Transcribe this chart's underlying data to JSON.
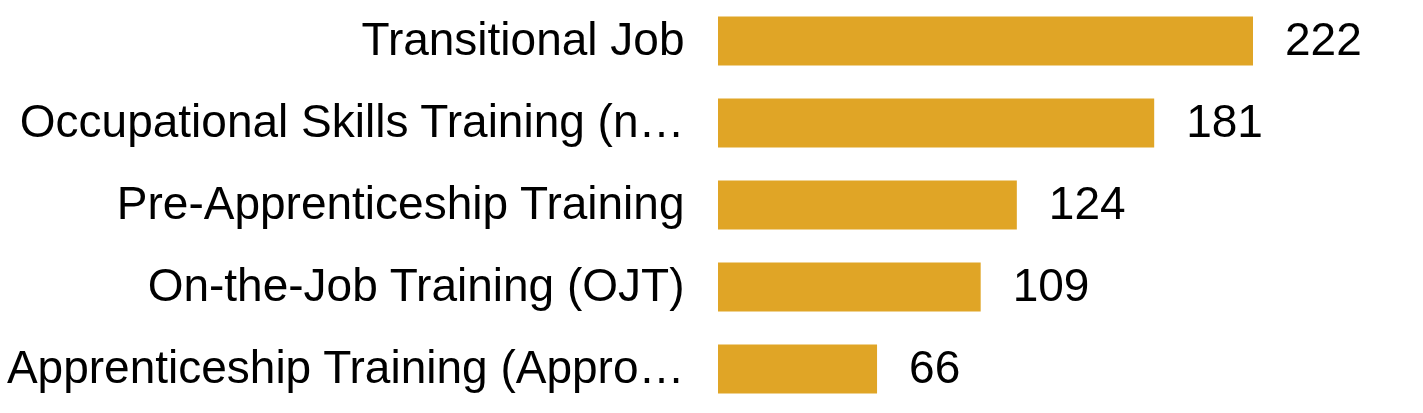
{
  "chart_data": {
    "type": "bar",
    "orientation": "horizontal",
    "categories": [
      "Transitional Job",
      "Occupational Skills Training (n…",
      "Pre-Apprenticeship Training",
      "On-the-Job Training (OJT)",
      "Apprenticeship Training (Appro…"
    ],
    "values": [
      222,
      181,
      124,
      109,
      66
    ],
    "color": "#e0a526",
    "data_labels": true,
    "tick_labels": "y"
  }
}
